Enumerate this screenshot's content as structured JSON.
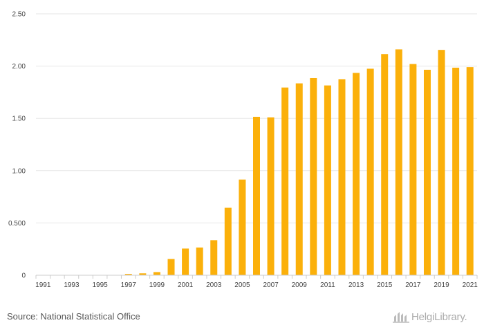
{
  "chart_data": {
    "type": "bar",
    "title": "",
    "xlabel": "",
    "ylabel": "",
    "ylim": [
      0,
      2.5
    ],
    "grid": true,
    "yticks": [
      0,
      0.5,
      1.0,
      1.5,
      2.0,
      2.5
    ],
    "ytick_labels": [
      "0",
      "0.500",
      "1.00",
      "1.50",
      "2.00",
      "2.50"
    ],
    "categories": [
      "1991",
      "1992",
      "1993",
      "1994",
      "1995",
      "1996",
      "1997",
      "1998",
      "1999",
      "2000",
      "2001",
      "2002",
      "2003",
      "2004",
      "2005",
      "2006",
      "2007",
      "2008",
      "2009",
      "2010",
      "2011",
      "2012",
      "2013",
      "2014",
      "2015",
      "2016",
      "2017",
      "2018",
      "2019",
      "2020",
      "2021"
    ],
    "xtick_labels": [
      "1991",
      "1993",
      "1995",
      "1997",
      "1999",
      "2001",
      "2003",
      "2005",
      "2007",
      "2009",
      "2011",
      "2013",
      "2015",
      "2017",
      "2019",
      "2021"
    ],
    "values": [
      0,
      0,
      0,
      0,
      0,
      0,
      0.012,
      0.018,
      0.03,
      0.155,
      0.255,
      0.265,
      0.335,
      0.645,
      0.915,
      1.515,
      1.51,
      1.795,
      1.835,
      1.885,
      1.815,
      1.875,
      1.935,
      1.975,
      2.115,
      2.16,
      2.02,
      1.965,
      2.155,
      1.985,
      1.99
    ],
    "bar_color": "#fbb00a",
    "grid_color": "#e6e6e6",
    "axis_color": "#cccccc"
  },
  "footer": {
    "source": "Source: National Statistical Office",
    "brand": "HelgiLibrary."
  }
}
